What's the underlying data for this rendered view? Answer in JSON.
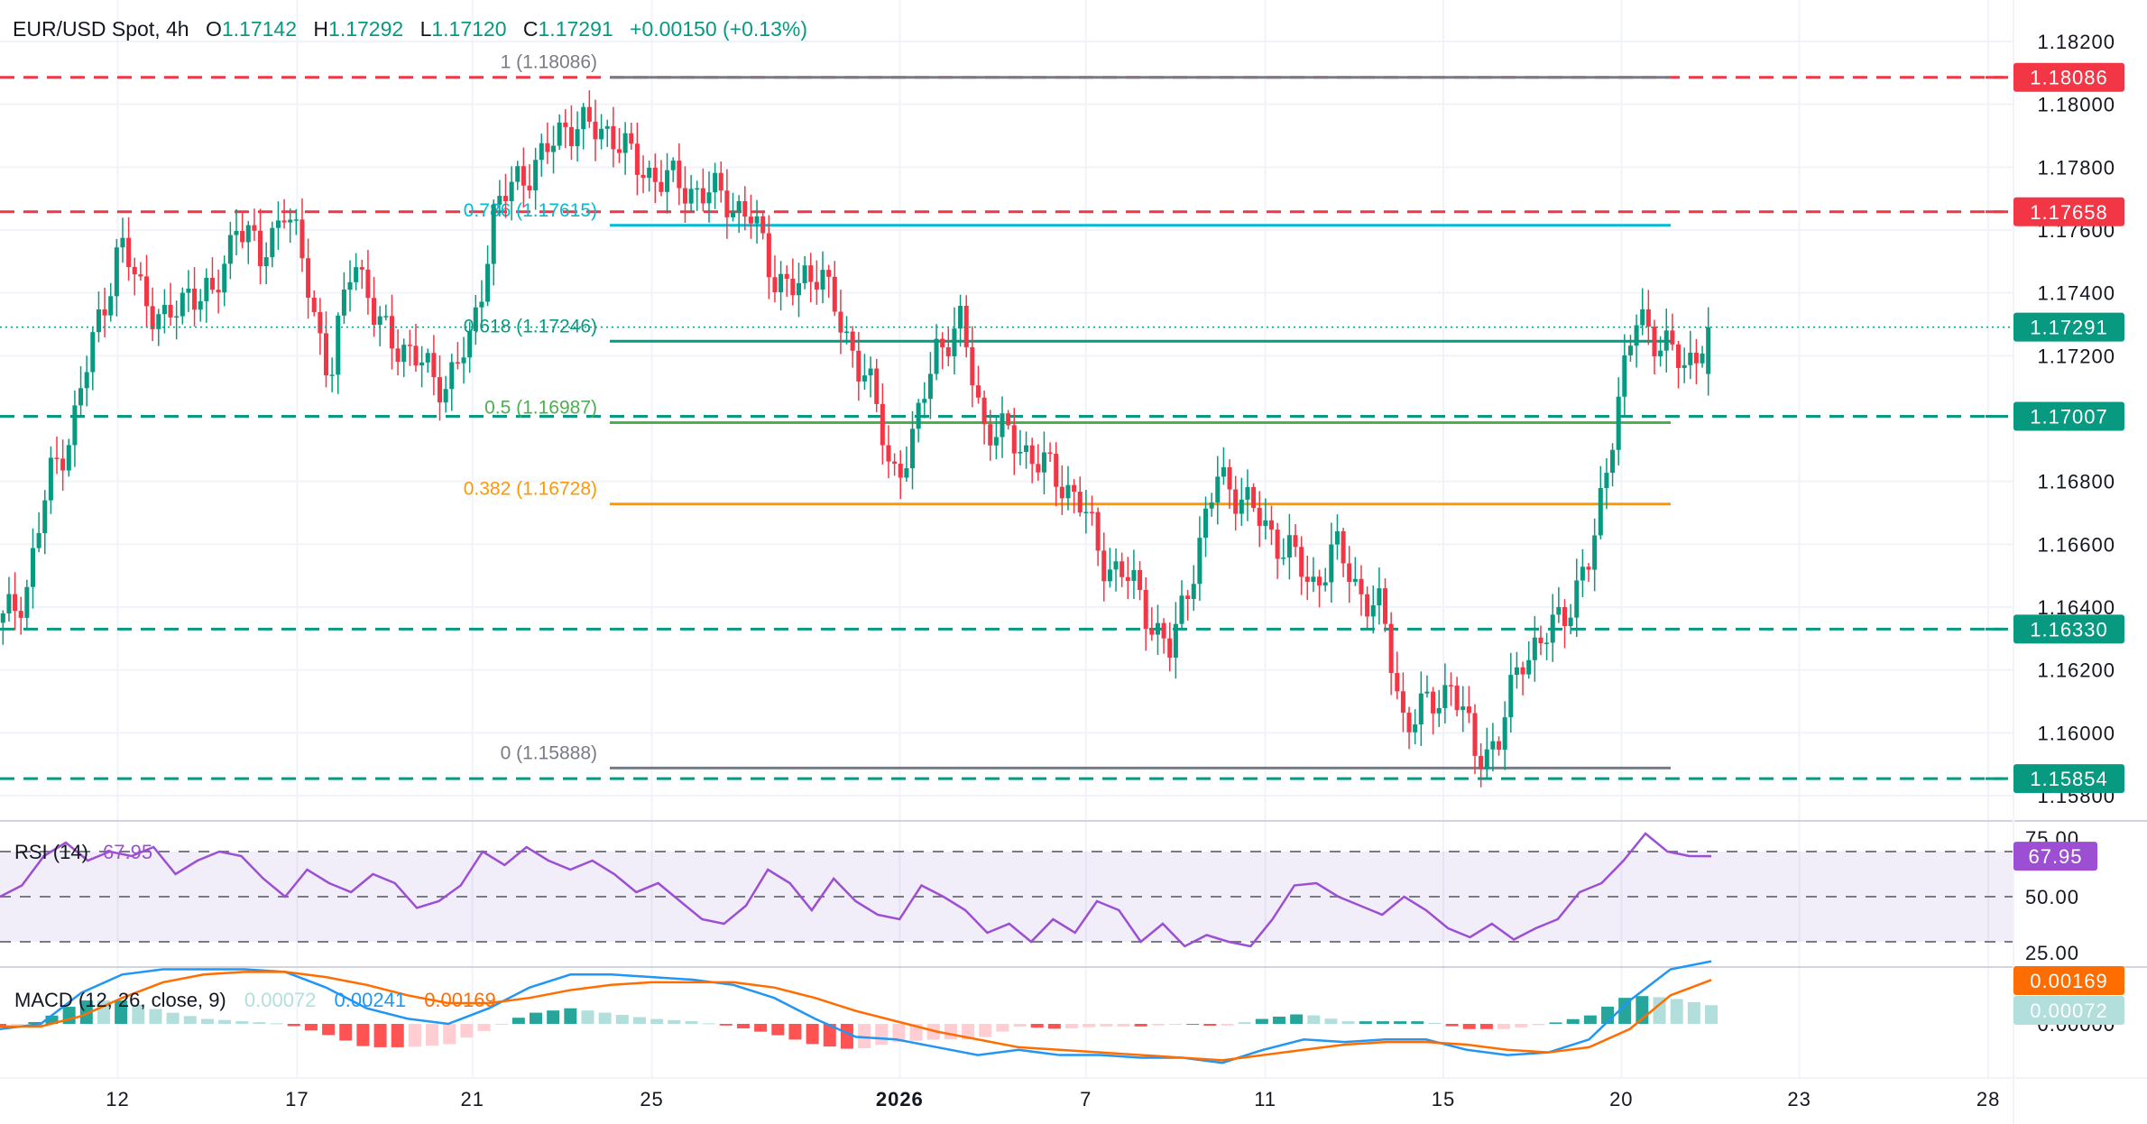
{
  "header": {
    "symbol": "EUR/USD Spot, 4h",
    "o_label": "O",
    "o": "1.17142",
    "h_label": "H",
    "h": "1.17292",
    "l_label": "L",
    "l": "1.17120",
    "c_label": "C",
    "c": "1.17291",
    "change": "+0.00150 (+0.13%)"
  },
  "colors": {
    "up": "#089981",
    "down": "#f23645",
    "rsi": "#9c4fd3",
    "macd": "#2196f3",
    "signal": "#ff6d00",
    "hist_up_strong": "#26a69a",
    "hist_up_weak": "#b2dfdb",
    "hist_down_strong": "#ff5252",
    "hist_down_weak": "#ffcdd2"
  },
  "chart_data": [
    {
      "type": "candlestick",
      "title": "EUR/USD Spot, 4h",
      "ylim": [
        1.1575,
        1.1832
      ],
      "y_ticks": [
        "1.18200",
        "1.18000",
        "1.17800",
        "1.17600",
        "1.17400",
        "1.17200",
        "1.16800",
        "1.16600",
        "1.16400",
        "1.16200",
        "1.16000",
        "1.15800"
      ],
      "x_ticks": [
        "12",
        "17",
        "21",
        "25",
        "2026",
        "7",
        "11",
        "15",
        "20",
        "23",
        "28"
      ],
      "approx_close_path": [
        1.1635,
        1.1646,
        1.1681,
        1.1698,
        1.1729,
        1.1755,
        1.174,
        1.1729,
        1.1742,
        1.1737,
        1.1764,
        1.175,
        1.1768,
        1.1746,
        1.1711,
        1.1755,
        1.1729,
        1.1724,
        1.1716,
        1.1711,
        1.1724,
        1.1764,
        1.1777,
        1.1781,
        1.1794,
        1.1792,
        1.1792,
        1.1781,
        1.1777,
        1.1774,
        1.1772,
        1.177,
        1.1764,
        1.1746,
        1.174,
        1.175,
        1.1724,
        1.1716,
        1.1681,
        1.1694,
        1.1724,
        1.1729,
        1.1698,
        1.1694,
        1.1689,
        1.1681,
        1.1676,
        1.1655,
        1.1651,
        1.1638,
        1.1625,
        1.1655,
        1.1681,
        1.1676,
        1.1665,
        1.1659,
        1.1646,
        1.1659,
        1.1646,
        1.1638,
        1.1603,
        1.1608,
        1.1616,
        1.1594,
        1.1596,
        1.1625,
        1.1629,
        1.1641,
        1.1655,
        1.1702,
        1.1733,
        1.1724,
        1.1716,
        1.17291
      ],
      "horizontal_levels": [
        {
          "value": "1.18086",
          "color": "#f23645",
          "style": "dashed"
        },
        {
          "value": "1.17658",
          "color": "#f23645",
          "style": "dashed"
        },
        {
          "value": "1.17007",
          "color": "#089981",
          "style": "dashed"
        },
        {
          "value": "1.16330",
          "color": "#089981",
          "style": "dashed"
        },
        {
          "value": "1.15854",
          "color": "#089981",
          "style": "dashed"
        }
      ],
      "last_price": {
        "value": "1.17291",
        "color": "#089981"
      },
      "fibonacci": [
        {
          "label": "1 (1.18086)",
          "value": 1.18086,
          "color": "#787b86"
        },
        {
          "label": "0.786 (1.17615)",
          "value": 1.17615,
          "color": "#00bcd4"
        },
        {
          "label": "0.618 (1.17246)",
          "value": 1.17246,
          "color": "#089981"
        },
        {
          "label": "0.5 (1.16987)",
          "value": 1.16987,
          "color": "#4caf50"
        },
        {
          "label": "0.382 (1.16728)",
          "value": 1.16728,
          "color": "#ff9800"
        },
        {
          "label": "0 (1.15888)",
          "value": 1.15888,
          "color": "#787b86"
        }
      ]
    },
    {
      "type": "line",
      "title": "RSI (14)",
      "value_label": "67.95",
      "y_ticks": [
        "75.00",
        "50.00",
        "25.00"
      ],
      "bands": [
        30,
        50,
        70
      ],
      "values": [
        50,
        55,
        68,
        74,
        66,
        70,
        68,
        72,
        60,
        66,
        70,
        68,
        58,
        50,
        62,
        56,
        52,
        60,
        56,
        45,
        48,
        55,
        70,
        64,
        72,
        66,
        62,
        66,
        60,
        52,
        56,
        48,
        40,
        38,
        46,
        62,
        56,
        44,
        58,
        48,
        42,
        40,
        55,
        50,
        44,
        34,
        38,
        30,
        40,
        34,
        48,
        44,
        30,
        38,
        28,
        33,
        30,
        28,
        40,
        55,
        56,
        50,
        46,
        42,
        50,
        44,
        36,
        32,
        38,
        31,
        36,
        40,
        52,
        56,
        66,
        78,
        70,
        68,
        67.95
      ]
    },
    {
      "type": "line",
      "title": "MACD (12, 26, close, 9)",
      "hist_label": "0.00072",
      "macd_label": "0.00241",
      "signal_label": "0.00169",
      "y_ticks": [
        "0.00000"
      ],
      "macd": [
        -0.0002,
        0.0,
        0.0012,
        0.0019,
        0.0021,
        0.0021,
        0.0021,
        0.002,
        0.0014,
        0.0006,
        0.0002,
        0.0,
        0.0006,
        0.0014,
        0.0019,
        0.0019,
        0.0018,
        0.0017,
        0.0015,
        0.001,
        0.0002,
        -0.0005,
        -0.0006,
        -0.0009,
        -0.0012,
        -0.001,
        -0.0012,
        -0.0012,
        -0.0013,
        -0.0013,
        -0.0015,
        -0.001,
        -0.0006,
        -0.0007,
        -0.0006,
        -0.0006,
        -0.001,
        -0.0012,
        -0.0011,
        -0.0006,
        0.0009,
        0.0021,
        0.00241
      ],
      "signal": [
        -0.0001,
        -0.0001,
        0.0003,
        0.001,
        0.0016,
        0.0019,
        0.002,
        0.002,
        0.0018,
        0.0015,
        0.0011,
        0.0008,
        0.0008,
        0.001,
        0.0013,
        0.0015,
        0.0016,
        0.0016,
        0.0016,
        0.0014,
        0.001,
        0.0005,
        0.0001,
        -0.0003,
        -0.0006,
        -0.0009,
        -0.001,
        -0.0011,
        -0.0012,
        -0.0013,
        -0.0014,
        -0.0012,
        -0.001,
        -0.0008,
        -0.0007,
        -0.0007,
        -0.0008,
        -0.001,
        -0.0011,
        -0.0009,
        -0.0002,
        0.0011,
        0.00169
      ]
    }
  ]
}
